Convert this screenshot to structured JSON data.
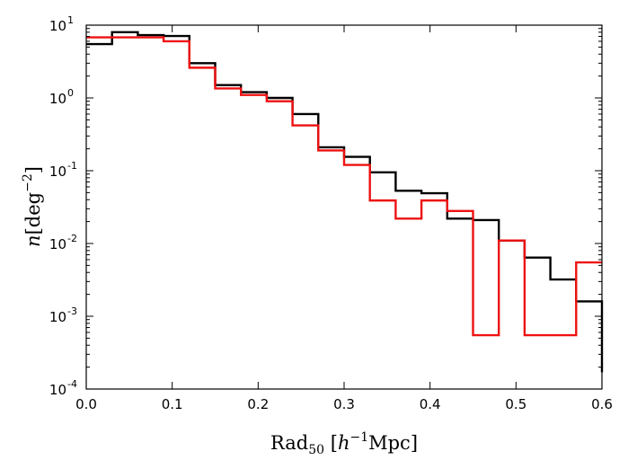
{
  "chart_data": {
    "type": "line",
    "step": "post",
    "xlabel": {
      "main": "Rad",
      "sub": "50",
      "bracket_open": "[",
      "h": "h",
      "h_exp": "−1",
      "unit": "Mpc",
      "bracket_close": "]"
    },
    "ylabel": {
      "n": "n",
      "bracket_open": "[",
      "unit": "deg",
      "unit_exp": "−2",
      "bracket_close": "]"
    },
    "xlim": [
      0.0,
      0.6
    ],
    "ylim": [
      0.0001,
      10
    ],
    "yscale": "log",
    "grid": false,
    "legend": "none",
    "x_ticks": [
      "0.0",
      "0.1",
      "0.2",
      "0.3",
      "0.4",
      "0.5",
      "0.6"
    ],
    "x_tick_values": [
      0.0,
      0.1,
      0.2,
      0.3,
      0.4,
      0.5,
      0.6
    ],
    "y_ticks": [
      {
        "base": "10",
        "exp": "-4",
        "value": 0.0001
      },
      {
        "base": "10",
        "exp": "-3",
        "value": 0.001
      },
      {
        "base": "10",
        "exp": "-2",
        "value": 0.01
      },
      {
        "base": "10",
        "exp": "-1",
        "value": 0.1
      },
      {
        "base": "10",
        "exp": "0",
        "value": 1
      },
      {
        "base": "10",
        "exp": "1",
        "value": 10
      }
    ],
    "bin_edges": [
      0.0,
      0.03,
      0.06,
      0.09,
      0.12,
      0.15,
      0.18,
      0.21,
      0.24,
      0.27,
      0.3,
      0.33,
      0.36,
      0.39,
      0.42,
      0.45,
      0.48,
      0.51,
      0.54,
      0.57,
      0.6
    ],
    "series": [
      {
        "color": "#000000",
        "values": [
          5.5,
          8.0,
          7.3,
          7.1,
          3.0,
          1.5,
          1.2,
          1.0,
          0.6,
          0.21,
          0.155,
          0.095,
          0.053,
          0.049,
          0.022,
          0.021,
          0.011,
          0.0064,
          0.0032,
          0.0016
        ],
        "end_drop_to": 0.00017
      },
      {
        "color": "#ee1111",
        "values": [
          6.8,
          6.8,
          6.8,
          6.0,
          2.6,
          1.35,
          1.1,
          0.9,
          0.42,
          0.19,
          0.12,
          0.039,
          0.022,
          0.039,
          0.028,
          0.00055,
          0.011,
          0.00055,
          0.00055,
          0.0055
        ],
        "end_drop_to": null
      }
    ]
  }
}
